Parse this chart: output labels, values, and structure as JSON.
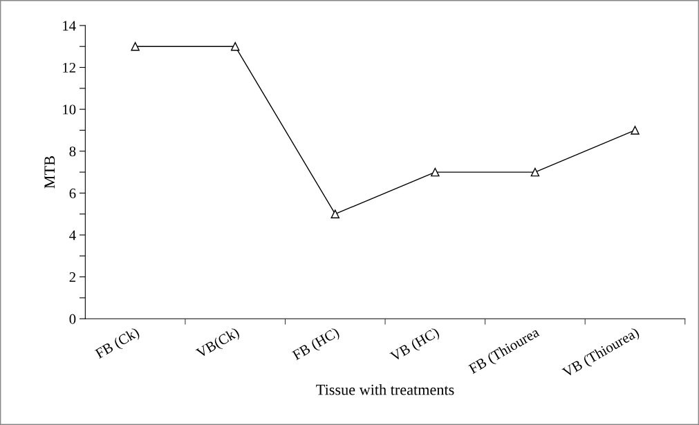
{
  "chart_data": {
    "type": "line",
    "xlabel": "Tissue with treatments",
    "ylabel": "MTB",
    "categories": [
      "FB (Ck)",
      "VB(Ck)",
      "FB (HC)",
      "VB (HC)",
      "FB (Thiourea",
      "VB (Thiourea)"
    ],
    "series": [
      {
        "color": "#000000",
        "values": [
          13,
          13,
          5,
          7,
          7,
          9
        ]
      }
    ],
    "ylim": [
      0,
      14
    ],
    "yticks": [
      0,
      {
        "value": 1,
        "label": null
      },
      2,
      {
        "value": 3,
        "label": null
      },
      4,
      {
        "value": 5,
        "label": null
      },
      6,
      {
        "value": 7,
        "label": null
      },
      8,
      {
        "value": 9,
        "label": null
      },
      10,
      {
        "value": 11,
        "label": null
      },
      12,
      {
        "value": 13,
        "label": null
      },
      14
    ],
    "marker": "triangle",
    "line_style": "solid",
    "grid": false,
    "legend": false
  }
}
